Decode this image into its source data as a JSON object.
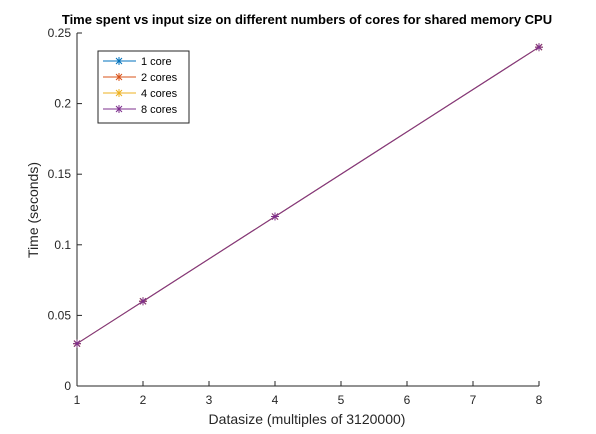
{
  "chart_data": {
    "type": "line",
    "title": "Time spent vs input size on different numbers of cores for shared memory CPU",
    "xlabel": "Datasize (multiples of 3120000)",
    "ylabel": "Time (seconds)",
    "xlim": [
      1,
      8
    ],
    "ylim": [
      0,
      0.25
    ],
    "xticks": [
      1,
      2,
      3,
      4,
      5,
      6,
      7,
      8
    ],
    "yticks": [
      0,
      0.05,
      0.1,
      0.15,
      0.2,
      0.25
    ],
    "ytick_labels": [
      "0",
      "0.05",
      "0.1",
      "0.15",
      "0.2",
      "0.25"
    ],
    "grid": false,
    "legend_position": "top-left",
    "marker": "asterisk",
    "series": [
      {
        "name": "1 core",
        "color": "#0072BD",
        "x": [
          1,
          2,
          4,
          8
        ],
        "values": [
          0.03,
          0.06,
          0.12,
          0.24
        ]
      },
      {
        "name": "2 cores",
        "color": "#D95319",
        "x": [
          1,
          2,
          4,
          8
        ],
        "values": [
          0.03,
          0.06,
          0.12,
          0.24
        ]
      },
      {
        "name": "4 cores",
        "color": "#EDB120",
        "x": [
          1,
          2,
          4,
          8
        ],
        "values": [
          0.03,
          0.06,
          0.12,
          0.24
        ]
      },
      {
        "name": "8 cores",
        "color": "#7E2F8E",
        "x": [
          1,
          2,
          4,
          8
        ],
        "values": [
          0.03,
          0.06,
          0.12,
          0.24
        ]
      }
    ]
  }
}
